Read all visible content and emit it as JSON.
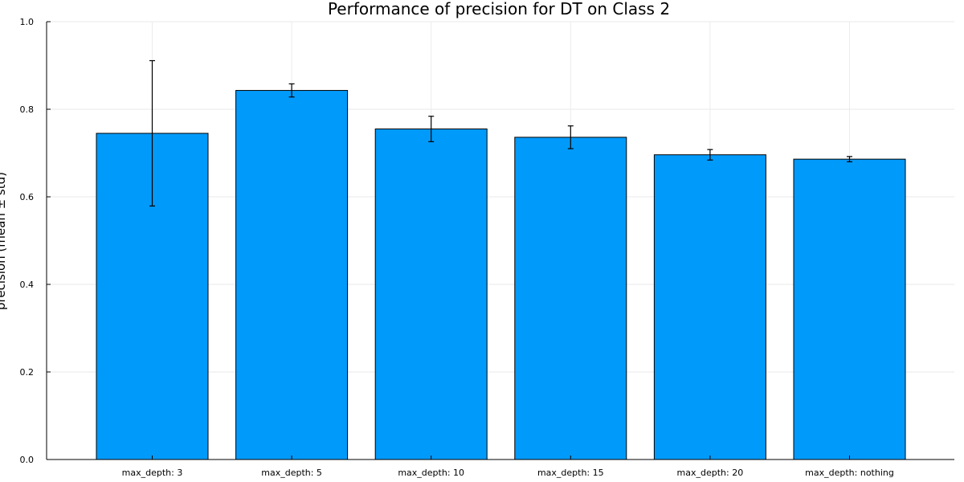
{
  "chart_data": {
    "type": "bar",
    "title": "Performance of precision for DT on Class 2",
    "xlabel": "",
    "ylabel": "precision (mean ± std)",
    "categories": [
      "max_depth: 3",
      "max_depth: 5",
      "max_depth: 10",
      "max_depth: 15",
      "max_depth: 20",
      "max_depth: nothing"
    ],
    "values": [
      0.745,
      0.843,
      0.755,
      0.736,
      0.696,
      0.686
    ],
    "errors": [
      0.166,
      0.015,
      0.029,
      0.026,
      0.012,
      0.006
    ],
    "ylim": [
      0,
      1
    ],
    "yticks": [
      "0.0",
      "0.2",
      "0.4",
      "0.6",
      "0.8",
      "1.0"
    ],
    "grid": true,
    "legend": "none",
    "bar_color": "#009AFA",
    "bar_edge_color": "#000000",
    "error_bar_color": "#000000"
  }
}
